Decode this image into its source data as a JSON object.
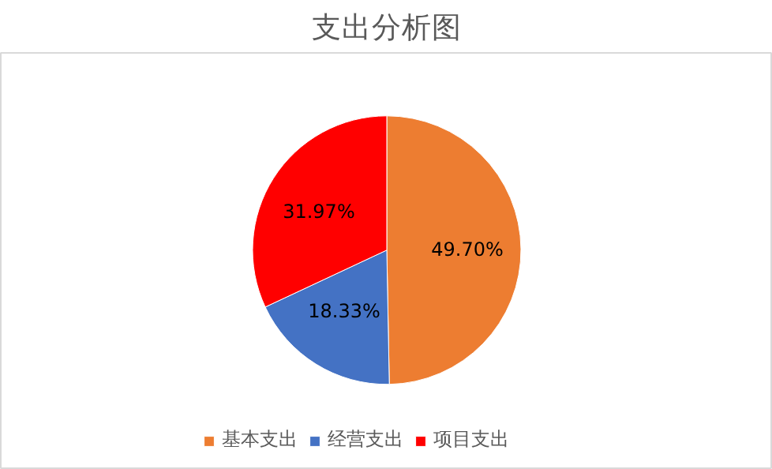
{
  "chart_data": {
    "type": "pie",
    "title": "支出分析图",
    "categories": [
      "基本支出",
      "经营支出",
      "项目支出",
      null
    ],
    "values": [
      49.7,
      18.33,
      31.97,
      0
    ],
    "colors": [
      "#ed7d31",
      "#4472c4",
      "#ff0000",
      "#4472c4"
    ],
    "value_labels": [
      "49.70%",
      "18.33%",
      "31.97%",
      null
    ],
    "legend": "bottom"
  }
}
